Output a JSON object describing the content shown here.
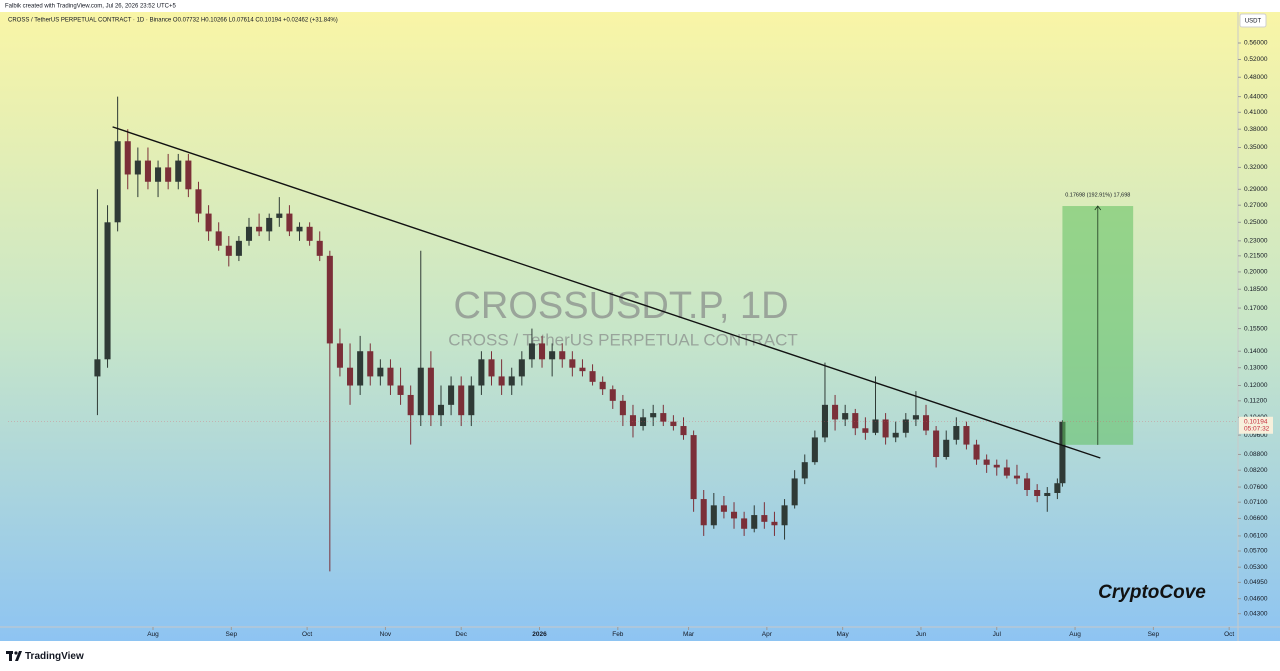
{
  "header": {
    "credit": "Falbik created with TradingView.com, Jul 26, 2026 23:52 UTC+5",
    "legend": "CROSS / TetherUS PERPETUAL CONTRACT · 1D · Binance   O0.07732 H0.10266 L0.07614 C0.10194 +0.02462 (+31.84%)"
  },
  "footer": {
    "brand": "TradingView"
  },
  "chart_data": {
    "type": "candlestick",
    "watermark": "CROSSUSDT.P, 1D",
    "watermark_subtitle": "CROSS / TetherUS PERPETUAL CONTRACT",
    "signature": "CryptoCove",
    "currency": "USDT",
    "log_scale": true,
    "grid": false,
    "up_color": "#2f3a36",
    "down_color": "#7b2f38",
    "xlim": [
      -26.4,
      460.5
    ],
    "ylim": [
      0.0405,
      0.638
    ],
    "xticks": [
      {
        "value": 31,
        "label": "Aug"
      },
      {
        "value": 62,
        "label": "Sep"
      },
      {
        "value": 92,
        "label": "Oct"
      },
      {
        "value": 123,
        "label": "Nov"
      },
      {
        "value": 153,
        "label": "Dec"
      },
      {
        "value": 184,
        "label": "2026"
      },
      {
        "value": 215,
        "label": "Feb"
      },
      {
        "value": 243,
        "label": "Mar"
      },
      {
        "value": 274,
        "label": "Apr"
      },
      {
        "value": 304,
        "label": "May"
      },
      {
        "value": 335,
        "label": "Jun"
      },
      {
        "value": 365,
        "label": "Jul"
      },
      {
        "value": 396,
        "label": "Aug"
      },
      {
        "value": 427,
        "label": "Sep"
      },
      {
        "value": 457,
        "label": "Oct"
      }
    ],
    "yticks": [
      {
        "value": 0.56,
        "label": "0.56000"
      },
      {
        "value": 0.52,
        "label": "0.52000"
      },
      {
        "value": 0.48,
        "label": "0.48000"
      },
      {
        "value": 0.44,
        "label": "0.44000"
      },
      {
        "value": 0.41,
        "label": "0.41000"
      },
      {
        "value": 0.38,
        "label": "0.38000"
      },
      {
        "value": 0.35,
        "label": "0.35000"
      },
      {
        "value": 0.32,
        "label": "0.32000"
      },
      {
        "value": 0.29,
        "label": "0.29000"
      },
      {
        "value": 0.27,
        "label": "0.27000"
      },
      {
        "value": 0.25,
        "label": "0.25000"
      },
      {
        "value": 0.23,
        "label": "0.23000"
      },
      {
        "value": 0.215,
        "label": "0.21500"
      },
      {
        "value": 0.2,
        "label": "0.20000"
      },
      {
        "value": 0.185,
        "label": "0.18500"
      },
      {
        "value": 0.17,
        "label": "0.17000"
      },
      {
        "value": 0.155,
        "label": "0.15500"
      },
      {
        "value": 0.14,
        "label": "0.14000"
      },
      {
        "value": 0.13,
        "label": "0.13000"
      },
      {
        "value": 0.12,
        "label": "0.12000"
      },
      {
        "value": 0.112,
        "label": "0.11200"
      },
      {
        "value": 0.104,
        "label": "0.10400"
      },
      {
        "value": 0.096,
        "label": "0.09600"
      },
      {
        "value": 0.088,
        "label": "0.08800"
      },
      {
        "value": 0.082,
        "label": "0.08200"
      },
      {
        "value": 0.076,
        "label": "0.07600"
      },
      {
        "value": 0.071,
        "label": "0.07100"
      },
      {
        "value": 0.066,
        "label": "0.06600"
      },
      {
        "value": 0.061,
        "label": "0.06100"
      },
      {
        "value": 0.057,
        "label": "0.05700"
      },
      {
        "value": 0.053,
        "label": "0.05300"
      },
      {
        "value": 0.0495,
        "label": "0.04950"
      },
      {
        "value": 0.046,
        "label": "0.04600"
      },
      {
        "value": 0.043,
        "label": "0.04300"
      }
    ],
    "last_price": 0.10194,
    "countdown": "05:07:32",
    "trendline": {
      "color": "#111111",
      "x": [
        15,
        406
      ],
      "y": [
        0.384,
        0.0866
      ]
    },
    "measure": {
      "color": "#5fbf5f",
      "x": [
        391,
        419
      ],
      "y": [
        0.0919,
        0.269
      ],
      "label": "0.17698 (192.91%) 17,698"
    },
    "candles": [
      {
        "x": 9,
        "open": 0.125,
        "high": 0.29,
        "low": 0.105,
        "close": 0.135
      },
      {
        "x": 13,
        "open": 0.135,
        "high": 0.27,
        "low": 0.13,
        "close": 0.25
      },
      {
        "x": 17,
        "open": 0.25,
        "high": 0.44,
        "low": 0.24,
        "close": 0.36
      },
      {
        "x": 21,
        "open": 0.36,
        "high": 0.38,
        "low": 0.29,
        "close": 0.31
      },
      {
        "x": 25,
        "open": 0.31,
        "high": 0.35,
        "low": 0.28,
        "close": 0.33
      },
      {
        "x": 29,
        "open": 0.33,
        "high": 0.35,
        "low": 0.29,
        "close": 0.3
      },
      {
        "x": 33,
        "open": 0.3,
        "high": 0.33,
        "low": 0.28,
        "close": 0.32
      },
      {
        "x": 37,
        "open": 0.32,
        "high": 0.34,
        "low": 0.29,
        "close": 0.3
      },
      {
        "x": 41,
        "open": 0.3,
        "high": 0.34,
        "low": 0.29,
        "close": 0.33
      },
      {
        "x": 45,
        "open": 0.33,
        "high": 0.34,
        "low": 0.28,
        "close": 0.29
      },
      {
        "x": 49,
        "open": 0.29,
        "high": 0.3,
        "low": 0.25,
        "close": 0.26
      },
      {
        "x": 53,
        "open": 0.26,
        "high": 0.27,
        "low": 0.23,
        "close": 0.24
      },
      {
        "x": 57,
        "open": 0.24,
        "high": 0.25,
        "low": 0.22,
        "close": 0.225
      },
      {
        "x": 61,
        "open": 0.225,
        "high": 0.235,
        "low": 0.205,
        "close": 0.215
      },
      {
        "x": 65,
        "open": 0.215,
        "high": 0.235,
        "low": 0.21,
        "close": 0.23
      },
      {
        "x": 69,
        "open": 0.23,
        "high": 0.255,
        "low": 0.225,
        "close": 0.245
      },
      {
        "x": 73,
        "open": 0.245,
        "high": 0.26,
        "low": 0.235,
        "close": 0.24
      },
      {
        "x": 77,
        "open": 0.24,
        "high": 0.26,
        "low": 0.23,
        "close": 0.255
      },
      {
        "x": 81,
        "open": 0.255,
        "high": 0.28,
        "low": 0.245,
        "close": 0.26
      },
      {
        "x": 85,
        "open": 0.26,
        "high": 0.27,
        "low": 0.235,
        "close": 0.24
      },
      {
        "x": 89,
        "open": 0.24,
        "high": 0.25,
        "low": 0.23,
        "close": 0.245
      },
      {
        "x": 93,
        "open": 0.245,
        "high": 0.25,
        "low": 0.225,
        "close": 0.23
      },
      {
        "x": 97,
        "open": 0.23,
        "high": 0.24,
        "low": 0.21,
        "close": 0.215
      },
      {
        "x": 101,
        "open": 0.215,
        "high": 0.22,
        "low": 0.052,
        "close": 0.145
      },
      {
        "x": 105,
        "open": 0.145,
        "high": 0.155,
        "low": 0.125,
        "close": 0.13
      },
      {
        "x": 109,
        "open": 0.13,
        "high": 0.145,
        "low": 0.11,
        "close": 0.12
      },
      {
        "x": 113,
        "open": 0.12,
        "high": 0.15,
        "low": 0.115,
        "close": 0.14
      },
      {
        "x": 117,
        "open": 0.14,
        "high": 0.145,
        "low": 0.12,
        "close": 0.125
      },
      {
        "x": 121,
        "open": 0.125,
        "high": 0.135,
        "low": 0.12,
        "close": 0.13
      },
      {
        "x": 125,
        "open": 0.13,
        "high": 0.135,
        "low": 0.115,
        "close": 0.12
      },
      {
        "x": 129,
        "open": 0.12,
        "high": 0.13,
        "low": 0.11,
        "close": 0.115
      },
      {
        "x": 133,
        "open": 0.115,
        "high": 0.12,
        "low": 0.092,
        "close": 0.105
      },
      {
        "x": 137,
        "open": 0.105,
        "high": 0.22,
        "low": 0.1,
        "close": 0.13
      },
      {
        "x": 141,
        "open": 0.13,
        "high": 0.14,
        "low": 0.1,
        "close": 0.105
      },
      {
        "x": 145,
        "open": 0.105,
        "high": 0.12,
        "low": 0.1,
        "close": 0.11
      },
      {
        "x": 149,
        "open": 0.11,
        "high": 0.125,
        "low": 0.105,
        "close": 0.12
      },
      {
        "x": 153,
        "open": 0.12,
        "high": 0.125,
        "low": 0.1,
        "close": 0.105
      },
      {
        "x": 157,
        "open": 0.105,
        "high": 0.125,
        "low": 0.1,
        "close": 0.12
      },
      {
        "x": 161,
        "open": 0.12,
        "high": 0.14,
        "low": 0.115,
        "close": 0.135
      },
      {
        "x": 165,
        "open": 0.135,
        "high": 0.14,
        "low": 0.12,
        "close": 0.125
      },
      {
        "x": 169,
        "open": 0.125,
        "high": 0.135,
        "low": 0.115,
        "close": 0.12
      },
      {
        "x": 173,
        "open": 0.12,
        "high": 0.13,
        "low": 0.115,
        "close": 0.125
      },
      {
        "x": 177,
        "open": 0.125,
        "high": 0.14,
        "low": 0.12,
        "close": 0.135
      },
      {
        "x": 181,
        "open": 0.135,
        "high": 0.155,
        "low": 0.13,
        "close": 0.145
      },
      {
        "x": 185,
        "open": 0.145,
        "high": 0.15,
        "low": 0.13,
        "close": 0.135
      },
      {
        "x": 189,
        "open": 0.135,
        "high": 0.145,
        "low": 0.125,
        "close": 0.14
      },
      {
        "x": 193,
        "open": 0.14,
        "high": 0.145,
        "low": 0.13,
        "close": 0.135
      },
      {
        "x": 197,
        "open": 0.135,
        "high": 0.14,
        "low": 0.125,
        "close": 0.13
      },
      {
        "x": 201,
        "open": 0.13,
        "high": 0.135,
        "low": 0.125,
        "close": 0.128
      },
      {
        "x": 205,
        "open": 0.128,
        "high": 0.132,
        "low": 0.12,
        "close": 0.122
      },
      {
        "x": 209,
        "open": 0.122,
        "high": 0.125,
        "low": 0.115,
        "close": 0.118
      },
      {
        "x": 213,
        "open": 0.118,
        "high": 0.12,
        "low": 0.108,
        "close": 0.112
      },
      {
        "x": 217,
        "open": 0.112,
        "high": 0.115,
        "low": 0.1,
        "close": 0.105
      },
      {
        "x": 221,
        "open": 0.105,
        "high": 0.11,
        "low": 0.095,
        "close": 0.1
      },
      {
        "x": 225,
        "open": 0.1,
        "high": 0.108,
        "low": 0.098,
        "close": 0.104
      },
      {
        "x": 229,
        "open": 0.104,
        "high": 0.11,
        "low": 0.1,
        "close": 0.106
      },
      {
        "x": 233,
        "open": 0.106,
        "high": 0.11,
        "low": 0.1,
        "close": 0.102
      },
      {
        "x": 237,
        "open": 0.102,
        "high": 0.105,
        "low": 0.098,
        "close": 0.1
      },
      {
        "x": 241,
        "open": 0.1,
        "high": 0.104,
        "low": 0.094,
        "close": 0.096
      },
      {
        "x": 245,
        "open": 0.096,
        "high": 0.098,
        "low": 0.068,
        "close": 0.072
      },
      {
        "x": 249,
        "open": 0.072,
        "high": 0.075,
        "low": 0.061,
        "close": 0.064
      },
      {
        "x": 253,
        "open": 0.064,
        "high": 0.074,
        "low": 0.063,
        "close": 0.07
      },
      {
        "x": 257,
        "open": 0.07,
        "high": 0.073,
        "low": 0.066,
        "close": 0.068
      },
      {
        "x": 261,
        "open": 0.068,
        "high": 0.071,
        "low": 0.063,
        "close": 0.066
      },
      {
        "x": 265,
        "open": 0.066,
        "high": 0.068,
        "low": 0.061,
        "close": 0.063
      },
      {
        "x": 269,
        "open": 0.063,
        "high": 0.07,
        "low": 0.062,
        "close": 0.067
      },
      {
        "x": 273,
        "open": 0.067,
        "high": 0.071,
        "low": 0.063,
        "close": 0.065
      },
      {
        "x": 277,
        "open": 0.065,
        "high": 0.068,
        "low": 0.061,
        "close": 0.064
      },
      {
        "x": 281,
        "open": 0.064,
        "high": 0.072,
        "low": 0.06,
        "close": 0.07
      },
      {
        "x": 285,
        "open": 0.07,
        "high": 0.082,
        "low": 0.069,
        "close": 0.079
      },
      {
        "x": 289,
        "open": 0.079,
        "high": 0.088,
        "low": 0.077,
        "close": 0.085
      },
      {
        "x": 293,
        "open": 0.085,
        "high": 0.098,
        "low": 0.084,
        "close": 0.095
      },
      {
        "x": 297,
        "open": 0.095,
        "high": 0.133,
        "low": 0.093,
        "close": 0.11
      },
      {
        "x": 301,
        "open": 0.11,
        "high": 0.115,
        "low": 0.098,
        "close": 0.103
      },
      {
        "x": 305,
        "open": 0.103,
        "high": 0.11,
        "low": 0.1,
        "close": 0.106
      },
      {
        "x": 309,
        "open": 0.106,
        "high": 0.108,
        "low": 0.096,
        "close": 0.099
      },
      {
        "x": 313,
        "open": 0.099,
        "high": 0.104,
        "low": 0.094,
        "close": 0.097
      },
      {
        "x": 317,
        "open": 0.097,
        "high": 0.125,
        "low": 0.096,
        "close": 0.103
      },
      {
        "x": 321,
        "open": 0.103,
        "high": 0.106,
        "low": 0.092,
        "close": 0.095
      },
      {
        "x": 325,
        "open": 0.095,
        "high": 0.102,
        "low": 0.093,
        "close": 0.097
      },
      {
        "x": 329,
        "open": 0.097,
        "high": 0.106,
        "low": 0.095,
        "close": 0.103
      },
      {
        "x": 333,
        "open": 0.103,
        "high": 0.117,
        "low": 0.1,
        "close": 0.105
      },
      {
        "x": 337,
        "open": 0.105,
        "high": 0.11,
        "low": 0.096,
        "close": 0.098
      },
      {
        "x": 341,
        "open": 0.098,
        "high": 0.1,
        "low": 0.083,
        "close": 0.087
      },
      {
        "x": 345,
        "open": 0.087,
        "high": 0.098,
        "low": 0.086,
        "close": 0.094
      },
      {
        "x": 349,
        "open": 0.094,
        "high": 0.104,
        "low": 0.092,
        "close": 0.1
      },
      {
        "x": 353,
        "open": 0.1,
        "high": 0.102,
        "low": 0.09,
        "close": 0.092
      },
      {
        "x": 357,
        "open": 0.092,
        "high": 0.094,
        "low": 0.084,
        "close": 0.086
      },
      {
        "x": 361,
        "open": 0.086,
        "high": 0.088,
        "low": 0.081,
        "close": 0.084
      },
      {
        "x": 365,
        "open": 0.084,
        "high": 0.086,
        "low": 0.08,
        "close": 0.083
      },
      {
        "x": 369,
        "open": 0.083,
        "high": 0.086,
        "low": 0.079,
        "close": 0.08
      },
      {
        "x": 373,
        "open": 0.08,
        "high": 0.084,
        "low": 0.077,
        "close": 0.079
      },
      {
        "x": 377,
        "open": 0.079,
        "high": 0.081,
        "low": 0.073,
        "close": 0.075
      },
      {
        "x": 381,
        "open": 0.075,
        "high": 0.077,
        "low": 0.071,
        "close": 0.073
      },
      {
        "x": 385,
        "open": 0.073,
        "high": 0.076,
        "low": 0.068,
        "close": 0.074
      },
      {
        "x": 389,
        "open": 0.074,
        "high": 0.079,
        "low": 0.072,
        "close": 0.07732
      },
      {
        "x": 391,
        "open": 0.07732,
        "high": 0.10266,
        "low": 0.07614,
        "close": 0.10194
      }
    ]
  }
}
